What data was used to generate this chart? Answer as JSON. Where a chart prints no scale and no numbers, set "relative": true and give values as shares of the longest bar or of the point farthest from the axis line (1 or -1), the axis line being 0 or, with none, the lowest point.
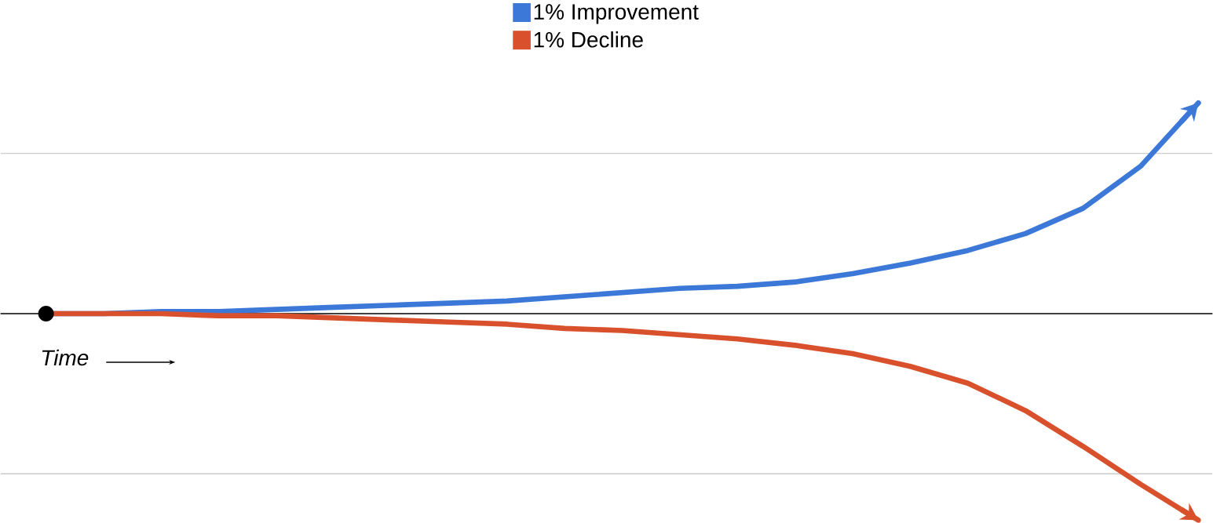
{
  "chart_data": {
    "type": "line",
    "relative": true,
    "xlabel": "Time",
    "legend": "top",
    "categories": [
      null,
      null,
      null,
      null,
      null,
      null,
      null,
      null,
      null,
      null,
      null,
      null,
      null,
      null,
      null,
      null,
      null,
      null,
      null,
      null,
      null
    ],
    "series": [
      {
        "name": "1% Improvement",
        "color": "#3c78d8",
        "marker": "none",
        "values": [
          0,
          0.0,
          0.01,
          0.01,
          0.02,
          0.03,
          0.04,
          0.05,
          0.06,
          0.08,
          0.1,
          0.12,
          0.13,
          0.15,
          0.19,
          0.24,
          0.3,
          0.38,
          0.5,
          0.7,
          1
        ]
      },
      {
        "name": "1% Decline",
        "color": "#d9512c",
        "marker": "none",
        "values": [
          0,
          0.0,
          0.0,
          -0.01,
          -0.01,
          -0.02,
          -0.03,
          -0.04,
          -0.05,
          -0.07,
          -0.08,
          -0.1,
          -0.12,
          -0.15,
          -0.19,
          -0.25,
          -0.33,
          -0.46,
          -0.63,
          -0.81,
          -0.98
        ]
      }
    ],
    "ref_lines": [
      {
        "axis": "y",
        "value": 0.76,
        "color": "#cccccc"
      },
      {
        "axis": "y",
        "value": -0.76,
        "color": "#cccccc"
      }
    ]
  }
}
